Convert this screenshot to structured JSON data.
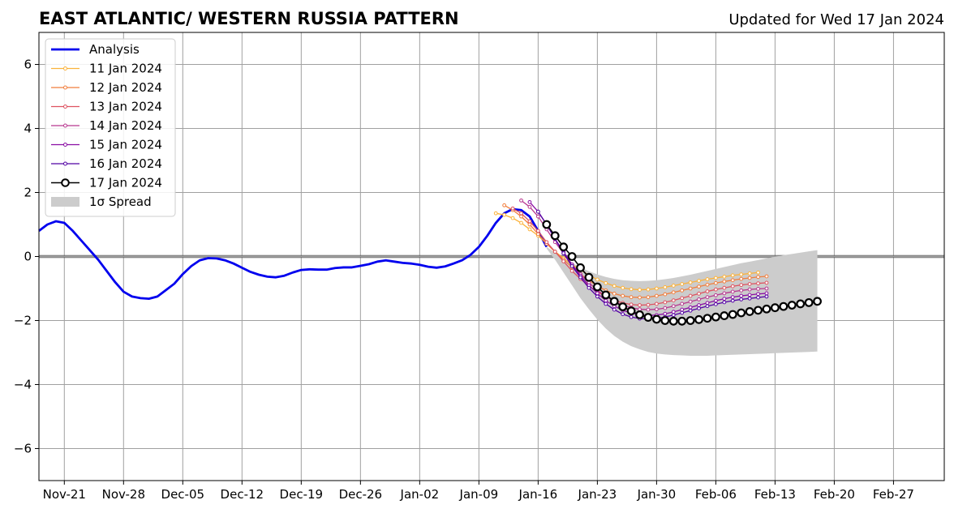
{
  "chart_data": {
    "type": "line",
    "title": "EAST ATLANTIC/ WESTERN RUSSIA PATTERN",
    "subtitle": "Updated for Wed 17 Jan 2024",
    "x_range": [
      "2023-11-18",
      "2024-03-04"
    ],
    "ylim": [
      -7,
      7
    ],
    "y_ticks": [
      -6,
      -4,
      -2,
      0,
      2,
      4,
      6
    ],
    "y_tick_labels": [
      "−6",
      "−4",
      "−2",
      "0",
      "2",
      "4",
      "6"
    ],
    "x_ticks": [
      "2023-11-21",
      "2023-11-28",
      "2023-12-05",
      "2023-12-12",
      "2023-12-19",
      "2023-12-26",
      "2024-01-02",
      "2024-01-09",
      "2024-01-16",
      "2024-01-23",
      "2024-01-30",
      "2024-02-06",
      "2024-02-13",
      "2024-02-20",
      "2024-02-27"
    ],
    "x_tick_labels": [
      "Nov-21",
      "Nov-28",
      "Dec-05",
      "Dec-12",
      "Dec-19",
      "Dec-26",
      "Jan-02",
      "Jan-09",
      "Jan-16",
      "Jan-23",
      "Jan-30",
      "Feb-06",
      "Feb-13",
      "Feb-20",
      "Feb-27"
    ],
    "grid": true,
    "legend_position": "top-left",
    "analysis": {
      "name": "Analysis",
      "color": "#0000ee",
      "start_date": "2023-11-18",
      "values": [
        0.8,
        1.0,
        1.1,
        1.05,
        0.8,
        0.5,
        0.2,
        -0.1,
        -0.45,
        -0.8,
        -1.1,
        -1.25,
        -1.3,
        -1.32,
        -1.25,
        -1.05,
        -0.85,
        -0.55,
        -0.3,
        -0.12,
        -0.05,
        -0.06,
        -0.12,
        -0.22,
        -0.35,
        -0.48,
        -0.57,
        -0.63,
        -0.65,
        -0.6,
        -0.5,
        -0.42,
        -0.4,
        -0.41,
        -0.41,
        -0.36,
        -0.34,
        -0.34,
        -0.29,
        -0.24,
        -0.16,
        -0.12,
        -0.16,
        -0.2,
        -0.22,
        -0.26,
        -0.32,
        -0.35,
        -0.31,
        -0.22,
        -0.12,
        0.05,
        0.3,
        0.65,
        1.05,
        1.35,
        1.48,
        1.45,
        1.25,
        0.8,
        0.3
      ]
    },
    "series": [
      {
        "name": "11 Jan 2024",
        "color": "#fbb23a",
        "start_date": "2024-01-11",
        "values": [
          1.35,
          1.3,
          1.2,
          1.05,
          0.85,
          0.65,
          0.4,
          0.15,
          -0.05,
          -0.25,
          -0.42,
          -0.58,
          -0.72,
          -0.83,
          -0.92,
          -0.98,
          -1.02,
          -1.04,
          -1.03,
          -1.0,
          -0.96,
          -0.91,
          -0.86,
          -0.81,
          -0.76,
          -0.71,
          -0.67,
          -0.63,
          -0.59,
          -0.56,
          -0.53,
          -0.5
        ]
      },
      {
        "name": "12 Jan 2024",
        "color": "#f17e3c",
        "start_date": "2024-01-12",
        "values": [
          1.6,
          1.45,
          1.25,
          1.0,
          0.7,
          0.4,
          0.15,
          -0.1,
          -0.33,
          -0.55,
          -0.75,
          -0.92,
          -1.06,
          -1.16,
          -1.23,
          -1.27,
          -1.28,
          -1.27,
          -1.23,
          -1.18,
          -1.12,
          -1.06,
          -1.0,
          -0.94,
          -0.88,
          -0.83,
          -0.78,
          -0.74,
          -0.7,
          -0.67,
          -0.64,
          -0.62
        ]
      },
      {
        "name": "13 Jan 2024",
        "color": "#de5260",
        "start_date": "2024-01-13",
        "values": [
          1.5,
          1.35,
          1.1,
          0.8,
          0.45,
          0.15,
          -0.15,
          -0.45,
          -0.7,
          -0.92,
          -1.1,
          -1.25,
          -1.37,
          -1.45,
          -1.5,
          -1.52,
          -1.51,
          -1.48,
          -1.43,
          -1.37,
          -1.3,
          -1.23,
          -1.16,
          -1.09,
          -1.03,
          -0.98,
          -0.93,
          -0.89,
          -0.86,
          -0.84,
          -0.82
        ]
      },
      {
        "name": "14 Jan 2024",
        "color": "#b8378f",
        "start_date": "2024-01-14",
        "values": [
          1.75,
          1.55,
          1.25,
          0.85,
          0.45,
          0.1,
          -0.25,
          -0.55,
          -0.82,
          -1.05,
          -1.25,
          -1.4,
          -1.52,
          -1.6,
          -1.65,
          -1.66,
          -1.65,
          -1.61,
          -1.55,
          -1.48,
          -1.41,
          -1.34,
          -1.27,
          -1.21,
          -1.15,
          -1.1,
          -1.06,
          -1.03,
          -1.01,
          -1.0
        ]
      },
      {
        "name": "15 Jan 2024",
        "color": "#8a0da3",
        "start_date": "2024-01-15",
        "values": [
          1.7,
          1.4,
          1.0,
          0.55,
          0.15,
          -0.25,
          -0.6,
          -0.9,
          -1.15,
          -1.38,
          -1.55,
          -1.68,
          -1.77,
          -1.82,
          -1.84,
          -1.83,
          -1.79,
          -1.73,
          -1.66,
          -1.59,
          -1.52,
          -1.45,
          -1.38,
          -1.32,
          -1.27,
          -1.23,
          -1.2,
          -1.17,
          -1.15
        ]
      },
      {
        "name": "16 Jan 2024",
        "color": "#5201a4",
        "start_date": "2024-01-16",
        "values": [
          1.4,
          1.0,
          0.55,
          0.1,
          -0.3,
          -0.65,
          -0.98,
          -1.25,
          -1.48,
          -1.66,
          -1.8,
          -1.89,
          -1.94,
          -1.95,
          -1.93,
          -1.89,
          -1.83,
          -1.76,
          -1.69,
          -1.62,
          -1.55,
          -1.49,
          -1.43,
          -1.38,
          -1.34,
          -1.31,
          -1.28,
          -1.25
        ]
      },
      {
        "name": "17 Jan 2024",
        "color": "#000000",
        "start_date": "2024-01-17",
        "values": [
          1.0,
          0.65,
          0.3,
          0.0,
          -0.35,
          -0.65,
          -0.95,
          -1.2,
          -1.4,
          -1.57,
          -1.7,
          -1.82,
          -1.9,
          -1.96,
          -2.0,
          -2.02,
          -2.02,
          -2.0,
          -1.97,
          -1.93,
          -1.89,
          -1.85,
          -1.81,
          -1.76,
          -1.72,
          -1.68,
          -1.64,
          -1.6,
          -1.56,
          -1.52,
          -1.48,
          -1.44,
          -1.4
        ]
      }
    ],
    "spread": {
      "name": "1σ Spread",
      "color": "#cccccc",
      "start_date": "2024-01-17",
      "upper": [
        0.3,
        0.12,
        -0.05,
        -0.2,
        -0.34,
        -0.46,
        -0.56,
        -0.64,
        -0.7,
        -0.74,
        -0.76,
        -0.77,
        -0.76,
        -0.74,
        -0.71,
        -0.67,
        -0.62,
        -0.57,
        -0.51,
        -0.45,
        -0.39,
        -0.33,
        -0.27,
        -0.21,
        -0.16,
        -0.11,
        -0.06,
        -0.01,
        0.04,
        0.08,
        0.12,
        0.16,
        0.2
      ],
      "lower": [
        0.25,
        -0.1,
        -0.5,
        -0.9,
        -1.3,
        -1.65,
        -1.97,
        -2.25,
        -2.48,
        -2.66,
        -2.8,
        -2.9,
        -2.98,
        -3.03,
        -3.06,
        -3.08,
        -3.09,
        -3.1,
        -3.1,
        -3.1,
        -3.09,
        -3.08,
        -3.07,
        -3.06,
        -3.05,
        -3.04,
        -3.03,
        -3.02,
        -3.01,
        -3.0,
        -2.99,
        -2.98,
        -2.97
      ]
    }
  }
}
